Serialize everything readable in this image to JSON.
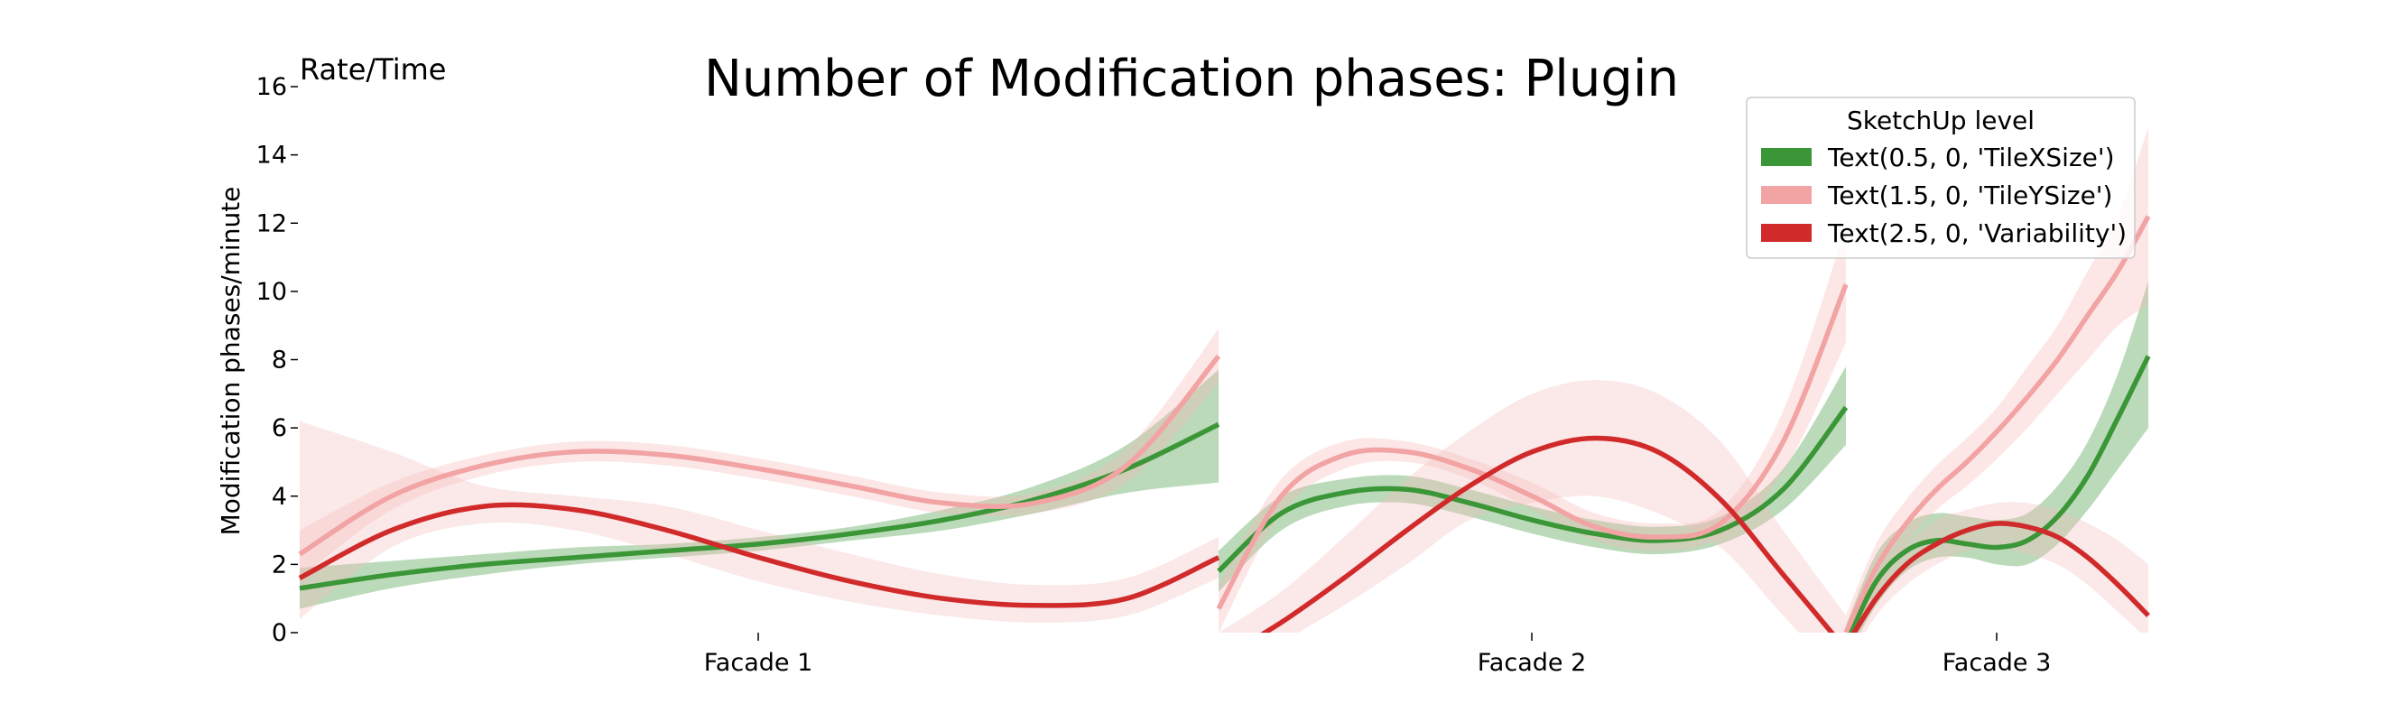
{
  "chart_data": {
    "type": "line",
    "title": "Number of Modification phases: Plugin",
    "corner_label": "Rate/Time",
    "ylabel": "Modification phases/minute",
    "xlabel": "",
    "ylim": [
      0,
      16
    ],
    "yticks": [
      0,
      2,
      4,
      6,
      8,
      10,
      12,
      14,
      16
    ],
    "categories": [
      "Facade 1",
      "Facade 2",
      "Facade 3"
    ],
    "grid": false,
    "legend": {
      "title": "SketchUp level",
      "placement": "top-right",
      "entries": [
        {
          "label": "Text(0.5, 0, 'TileXSize')",
          "color": "#3a9637"
        },
        {
          "label": "Text(1.5, 0, 'TileYSize')",
          "color": "#f2a3a3"
        },
        {
          "label": "Text(2.5, 0, 'Variability')",
          "color": "#d12a2a"
        }
      ]
    },
    "series": [
      {
        "name": "Text(0.5, 0, 'TileXSize')",
        "color": "#3a9637",
        "band_color": "#3a9637",
        "panels": [
          {
            "x": [
              0.0,
              0.1,
              0.2,
              0.3,
              0.4,
              0.5,
              0.6,
              0.7,
              0.8,
              0.9,
              1.0
            ],
            "y": [
              1.3,
              1.7,
              2.0,
              2.2,
              2.4,
              2.6,
              2.9,
              3.3,
              3.9,
              4.8,
              6.1
            ],
            "lo": [
              0.7,
              1.3,
              1.7,
              2.0,
              2.2,
              2.4,
              2.7,
              3.0,
              3.5,
              4.1,
              4.4
            ],
            "hi": [
              1.9,
              2.1,
              2.3,
              2.5,
              2.6,
              2.8,
              3.1,
              3.6,
              4.3,
              5.5,
              7.7
            ]
          },
          {
            "x": [
              0.0,
              0.1,
              0.2,
              0.3,
              0.4,
              0.5,
              0.6,
              0.7,
              0.8,
              0.9,
              1.0
            ],
            "y": [
              1.8,
              3.5,
              4.1,
              4.2,
              3.8,
              3.3,
              2.9,
              2.7,
              3.0,
              4.2,
              6.6
            ],
            "lo": [
              1.2,
              3.0,
              3.7,
              3.8,
              3.4,
              2.9,
              2.5,
              2.3,
              2.6,
              3.6,
              5.5
            ],
            "hi": [
              2.4,
              4.0,
              4.5,
              4.6,
              4.2,
              3.7,
              3.3,
              3.1,
              3.4,
              4.8,
              7.8
            ]
          },
          {
            "x": [
              0.0,
              0.1,
              0.2,
              0.3,
              0.4,
              0.5,
              0.6,
              0.7,
              0.8,
              0.9,
              1.0
            ],
            "y": [
              -0.3,
              1.5,
              2.4,
              2.7,
              2.6,
              2.5,
              2.7,
              3.4,
              4.6,
              6.3,
              8.1
            ],
            "lo": [
              -0.8,
              0.8,
              1.8,
              2.2,
              2.2,
              2.0,
              2.0,
              2.6,
              3.6,
              4.8,
              6.0
            ],
            "hi": [
              0.2,
              2.3,
              3.2,
              3.5,
              3.4,
              3.3,
              3.5,
              4.3,
              5.6,
              7.6,
              10.3
            ]
          }
        ]
      },
      {
        "name": "Text(1.5, 0, 'TileYSize')",
        "color": "#f2a3a3",
        "band_color": "#f7b8b8",
        "panels": [
          {
            "x": [
              0.0,
              0.1,
              0.2,
              0.3,
              0.4,
              0.5,
              0.6,
              0.7,
              0.8,
              0.9,
              1.0
            ],
            "y": [
              2.3,
              4.0,
              4.9,
              5.3,
              5.2,
              4.8,
              4.3,
              3.8,
              3.8,
              4.9,
              8.1
            ],
            "lo": [
              1.6,
              3.6,
              4.6,
              5.0,
              4.9,
              4.5,
              4.0,
              3.5,
              3.5,
              4.4,
              7.3
            ],
            "hi": [
              3.0,
              4.4,
              5.2,
              5.6,
              5.5,
              5.1,
              4.6,
              4.1,
              4.1,
              5.4,
              8.9
            ]
          },
          {
            "x": [
              0.0,
              0.1,
              0.2,
              0.3,
              0.4,
              0.5,
              0.6,
              0.7,
              0.8,
              0.9,
              1.0
            ],
            "y": [
              0.7,
              4.0,
              5.2,
              5.3,
              4.8,
              4.0,
              3.1,
              2.8,
              3.2,
              5.6,
              10.2
            ],
            "lo": [
              0.0,
              3.5,
              4.8,
              5.0,
              4.5,
              3.6,
              2.7,
              2.4,
              2.8,
              4.7,
              8.5
            ],
            "hi": [
              1.4,
              4.5,
              5.6,
              5.6,
              5.1,
              4.4,
              3.5,
              3.2,
              3.6,
              6.5,
              11.9
            ]
          },
          {
            "x": [
              0.0,
              0.1,
              0.2,
              0.3,
              0.4,
              0.5,
              0.6,
              0.7,
              0.8,
              0.9,
              1.0
            ],
            "y": [
              0.0,
              1.9,
              3.2,
              4.2,
              5.0,
              5.9,
              6.9,
              8.0,
              9.3,
              10.6,
              12.2
            ],
            "lo": [
              -0.5,
              1.2,
              2.6,
              3.6,
              4.3,
              5.1,
              6.0,
              7.0,
              8.0,
              9.0,
              9.6
            ],
            "hi": [
              0.5,
              2.6,
              3.9,
              4.9,
              5.7,
              6.6,
              7.8,
              9.0,
              10.6,
              12.2,
              14.8
            ]
          }
        ]
      },
      {
        "name": "Text(2.5, 0, 'Variability')",
        "color": "#d12a2a",
        "band_color": "#f4bcbc",
        "panels": [
          {
            "x": [
              0.0,
              0.1,
              0.2,
              0.3,
              0.4,
              0.5,
              0.6,
              0.7,
              0.8,
              0.9,
              1.0
            ],
            "y": [
              1.6,
              3.0,
              3.7,
              3.6,
              3.0,
              2.2,
              1.5,
              1.0,
              0.8,
              1.0,
              2.2
            ],
            "lo": [
              0.4,
              2.5,
              3.2,
              3.0,
              2.3,
              1.5,
              0.9,
              0.5,
              0.3,
              0.5,
              1.6
            ],
            "hi": [
              6.2,
              5.3,
              4.3,
              4.0,
              3.7,
              3.0,
              2.3,
              1.7,
              1.4,
              1.6,
              2.8
            ]
          },
          {
            "x": [
              0.0,
              0.1,
              0.2,
              0.3,
              0.4,
              0.5,
              0.6,
              0.7,
              0.8,
              0.9,
              1.0
            ],
            "y": [
              -0.8,
              0.3,
              1.6,
              3.0,
              4.3,
              5.3,
              5.7,
              5.3,
              3.9,
              1.7,
              -0.5
            ],
            "lo": [
              -1.5,
              -0.3,
              0.8,
              2.0,
              3.3,
              3.8,
              4.0,
              3.5,
              2.5,
              0.5,
              -1.5
            ],
            "hi": [
              0.0,
              1.2,
              2.8,
              4.5,
              5.9,
              7.0,
              7.4,
              7.0,
              5.6,
              3.0,
              0.5
            ]
          },
          {
            "x": [
              0.0,
              0.1,
              0.2,
              0.3,
              0.4,
              0.5,
              0.6,
              0.7,
              0.8,
              0.9,
              1.0
            ],
            "y": [
              -0.4,
              1.0,
              2.0,
              2.6,
              3.0,
              3.2,
              3.1,
              2.8,
              2.2,
              1.4,
              0.5
            ],
            "lo": [
              -1.0,
              0.5,
              1.4,
              2.0,
              2.4,
              2.5,
              2.3,
              2.0,
              1.4,
              0.6,
              -0.2
            ],
            "hi": [
              0.2,
              1.6,
              2.6,
              3.3,
              3.6,
              3.8,
              3.8,
              3.6,
              3.2,
              2.7,
              2.0
            ]
          }
        ]
      }
    ]
  }
}
